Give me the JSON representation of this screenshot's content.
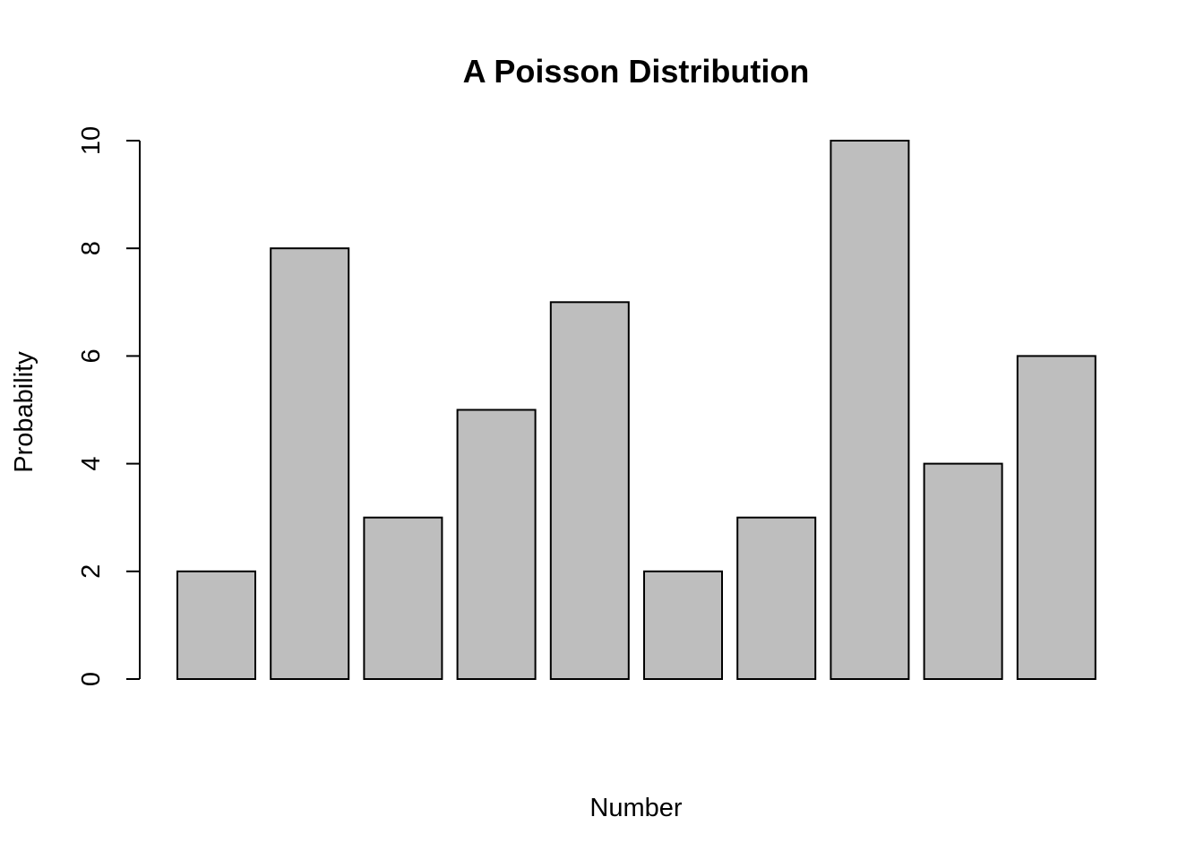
{
  "chart_data": {
    "type": "bar",
    "title": "A Poisson Distribution",
    "xlabel": "Number",
    "ylabel": "Probability",
    "values": [
      2,
      8,
      3,
      5,
      7,
      2,
      3,
      10,
      4,
      6
    ],
    "ylim": [
      0,
      10
    ],
    "yticks": [
      0,
      2,
      4,
      6,
      8,
      10
    ],
    "grid": false,
    "legend": "none",
    "bar_color": "#BEBEBE",
    "border_color": "#000000"
  }
}
